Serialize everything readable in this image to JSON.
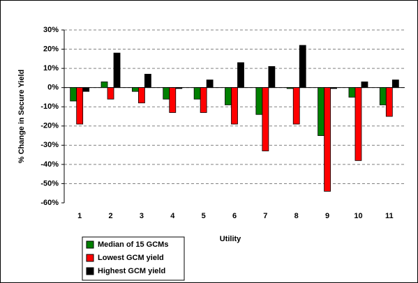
{
  "chart_data": {
    "type": "bar",
    "x_label": "Utility",
    "y_label": "% Change in Secure Yield",
    "categories": [
      "1",
      "2",
      "3",
      "4",
      "5",
      "6",
      "7",
      "8",
      "9",
      "10",
      "11"
    ],
    "series": [
      {
        "name": "Median of 15 GCMs",
        "color": "#008000",
        "values": [
          -7,
          3,
          -2,
          -6,
          -6,
          -9,
          -14,
          -0.5,
          -25,
          -5,
          -9
        ]
      },
      {
        "name": "Lowest GCM yield",
        "color": "#ff0000",
        "values": [
          -19,
          -6,
          -8,
          -13,
          -13,
          -19,
          -33,
          -19,
          -54,
          -38,
          -15
        ]
      },
      {
        "name": "Highest GCM yield",
        "color": "#000000",
        "values": [
          -2,
          18,
          7,
          -0.5,
          4,
          13,
          11,
          22,
          -0.5,
          3,
          4
        ]
      }
    ],
    "ylim": [
      -60,
      30
    ],
    "yticks": [
      {
        "value": -60,
        "label": "-60%"
      },
      {
        "value": -50,
        "label": "-50%"
      },
      {
        "value": -40,
        "label": "-40%"
      },
      {
        "value": -30,
        "label": "-30%"
      },
      {
        "value": -20,
        "label": "-20%"
      },
      {
        "value": -10,
        "label": "-10%"
      },
      {
        "value": 0,
        "label": "0%"
      },
      {
        "value": 10,
        "label": "10%"
      },
      {
        "value": 20,
        "label": "20%"
      },
      {
        "value": 30,
        "label": "30%"
      }
    ],
    "grid": true,
    "legend": "bottom-left"
  }
}
